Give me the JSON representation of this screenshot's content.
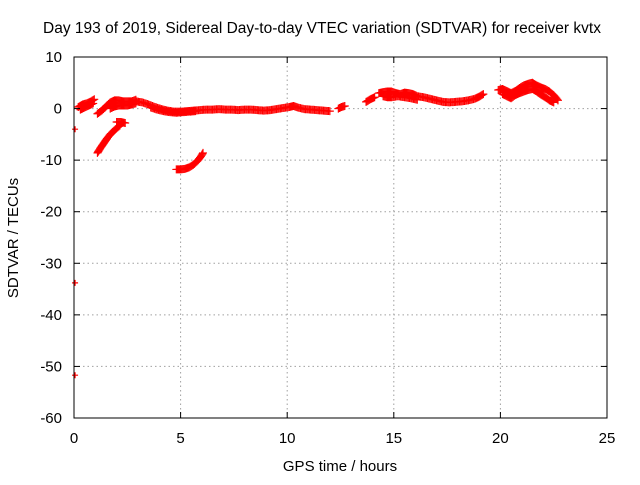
{
  "chart_data": {
    "type": "scatter",
    "title": "Day 193 of 2019, Sidereal Day-to-day VTEC variation (SDTVAR) for receiver kvtx",
    "xlabel": "GPS time / hours",
    "ylabel": "SDTVAR / TECUs",
    "xlim": [
      0,
      25
    ],
    "ylim": [
      -60,
      10
    ],
    "xticks": [
      0,
      5,
      10,
      15,
      20,
      25
    ],
    "yticks": [
      10,
      0,
      -10,
      -20,
      -30,
      -40,
      -50,
      -60
    ],
    "xtick_labels": [
      "0",
      "5",
      "10",
      "15",
      "20",
      "25"
    ],
    "ytick_labels": [
      "10",
      "0",
      "-10",
      "-20",
      "-30",
      "-40",
      "-50",
      "-60"
    ],
    "grid": true,
    "legend": "none",
    "marker": "plus",
    "color": "#ff0000",
    "series": [
      {
        "segments": [
          [
            [
              0.2,
              0.3
            ],
            [
              0.4,
              0.8
            ],
            [
              0.6,
              1.0
            ],
            [
              0.8,
              1.4
            ],
            [
              0.95,
              1.8
            ]
          ],
          [
            [
              0.3,
              -0.2
            ],
            [
              0.5,
              0.2
            ],
            [
              0.7,
              0.6
            ],
            [
              0.9,
              1.0
            ]
          ],
          [
            [
              1.1,
              -1.0
            ],
            [
              1.3,
              -0.4
            ],
            [
              1.5,
              0.4
            ],
            [
              1.7,
              1.2
            ],
            [
              1.9,
              1.6
            ],
            [
              2.1,
              1.6
            ],
            [
              2.3,
              1.4
            ],
            [
              2.5,
              1.4
            ],
            [
              2.7,
              1.4
            ],
            [
              2.9,
              1.7
            ]
          ],
          [
            [
              1.7,
              0.0
            ],
            [
              1.9,
              0.4
            ],
            [
              2.1,
              0.6
            ],
            [
              2.3,
              0.6
            ],
            [
              2.5,
              0.6
            ],
            [
              2.7,
              0.8
            ],
            [
              2.9,
              1.0
            ]
          ],
          [
            [
              1.1,
              -8.6
            ],
            [
              1.25,
              -7.6
            ],
            [
              1.4,
              -6.7
            ],
            [
              1.55,
              -5.8
            ],
            [
              1.7,
              -5.0
            ],
            [
              1.85,
              -4.4
            ],
            [
              2.0,
              -3.8
            ],
            [
              2.15,
              -3.3
            ]
          ],
          [
            [
              2.0,
              -2.6
            ],
            [
              2.2,
              -2.6
            ],
            [
              2.4,
              -2.8
            ]
          ],
          [
            [
              2.9,
              1.4
            ],
            [
              3.2,
              1.2
            ],
            [
              3.5,
              0.8
            ],
            [
              3.8,
              0.3
            ],
            [
              4.1,
              -0.1
            ],
            [
              4.4,
              -0.4
            ],
            [
              4.7,
              -0.6
            ],
            [
              5.0,
              -0.6
            ],
            [
              5.3,
              -0.5
            ],
            [
              5.6,
              -0.4
            ],
            [
              5.9,
              -0.3
            ],
            [
              6.2,
              -0.2
            ],
            [
              6.5,
              -0.2
            ],
            [
              6.8,
              -0.1
            ],
            [
              7.1,
              -0.2
            ],
            [
              7.4,
              -0.2
            ],
            [
              7.7,
              -0.3
            ],
            [
              8.0,
              -0.2
            ],
            [
              8.3,
              -0.2
            ],
            [
              8.6,
              -0.3
            ],
            [
              8.9,
              -0.4
            ],
            [
              9.2,
              -0.3
            ],
            [
              9.5,
              -0.1
            ],
            [
              9.8,
              0.1
            ],
            [
              10.1,
              0.3
            ],
            [
              10.3,
              0.5
            ],
            [
              10.5,
              0.2
            ],
            [
              10.8,
              -0.1
            ],
            [
              11.1,
              -0.2
            ],
            [
              11.4,
              -0.3
            ],
            [
              11.7,
              -0.4
            ],
            [
              12.0,
              -0.5
            ]
          ],
          [
            [
              3.6,
              0.2
            ],
            [
              3.9,
              -0.2
            ],
            [
              4.2,
              -0.5
            ],
            [
              4.5,
              -0.7
            ],
            [
              4.8,
              -0.8
            ],
            [
              5.1,
              -0.7
            ],
            [
              5.4,
              -0.6
            ],
            [
              5.7,
              -0.5
            ]
          ],
          [
            [
              4.8,
              -11.8
            ],
            [
              5.0,
              -11.8
            ],
            [
              5.2,
              -11.7
            ],
            [
              5.4,
              -11.4
            ],
            [
              5.6,
              -10.9
            ],
            [
              5.8,
              -10.1
            ],
            [
              5.95,
              -9.3
            ],
            [
              6.05,
              -8.6
            ]
          ],
          [
            [
              12.4,
              0.0
            ],
            [
              12.55,
              0.3
            ],
            [
              12.7,
              0.5
            ]
          ],
          [
            [
              13.7,
              1.3
            ],
            [
              13.9,
              1.8
            ],
            [
              14.1,
              2.2
            ]
          ],
          [
            [
              14.3,
              3.0
            ],
            [
              14.5,
              3.2
            ],
            [
              14.7,
              3.3
            ],
            [
              14.9,
              3.3
            ],
            [
              15.1,
              3.0
            ],
            [
              15.3,
              2.8
            ],
            [
              15.5,
              3.1
            ],
            [
              15.7,
              3.0
            ],
            [
              15.9,
              2.8
            ],
            [
              16.1,
              2.4
            ],
            [
              16.4,
              2.2
            ],
            [
              16.7,
              1.9
            ],
            [
              17.0,
              1.6
            ],
            [
              17.3,
              1.3
            ],
            [
              17.6,
              1.2
            ],
            [
              17.9,
              1.3
            ],
            [
              18.2,
              1.4
            ],
            [
              18.5,
              1.6
            ],
            [
              18.8,
              1.9
            ],
            [
              19.0,
              2.3
            ],
            [
              19.2,
              2.8
            ]
          ],
          [
            [
              14.5,
              2.4
            ],
            [
              14.7,
              2.2
            ],
            [
              14.9,
              2.2
            ],
            [
              15.2,
              2.4
            ],
            [
              15.5,
              2.2
            ],
            [
              15.8,
              2.0
            ],
            [
              16.1,
              1.7
            ]
          ],
          [
            [
              19.9,
              3.6
            ],
            [
              20.1,
              3.8
            ],
            [
              20.3,
              3.4
            ],
            [
              20.5,
              3.0
            ],
            [
              20.7,
              3.4
            ],
            [
              20.9,
              4.0
            ],
            [
              21.1,
              4.5
            ],
            [
              21.3,
              4.8
            ],
            [
              21.5,
              5.0
            ],
            [
              21.7,
              4.5
            ],
            [
              21.9,
              4.1
            ],
            [
              22.1,
              3.8
            ],
            [
              22.3,
              3.3
            ],
            [
              22.5,
              2.6
            ],
            [
              22.7,
              1.6
            ]
          ],
          [
            [
              20.1,
              2.8
            ],
            [
              20.3,
              2.4
            ],
            [
              20.5,
              2.0
            ],
            [
              20.7,
              2.6
            ],
            [
              20.9,
              3.0
            ],
            [
              21.1,
              3.3
            ],
            [
              21.3,
              3.6
            ],
            [
              21.5,
              3.8
            ],
            [
              21.7,
              3.3
            ],
            [
              21.9,
              2.7
            ],
            [
              22.1,
              2.2
            ],
            [
              22.3,
              1.6
            ],
            [
              22.5,
              1.2
            ]
          ]
        ],
        "points": [
          [
            0.05,
            -4.0
          ],
          [
            0.05,
            -33.8
          ],
          [
            0.05,
            -51.7
          ]
        ]
      }
    ]
  }
}
